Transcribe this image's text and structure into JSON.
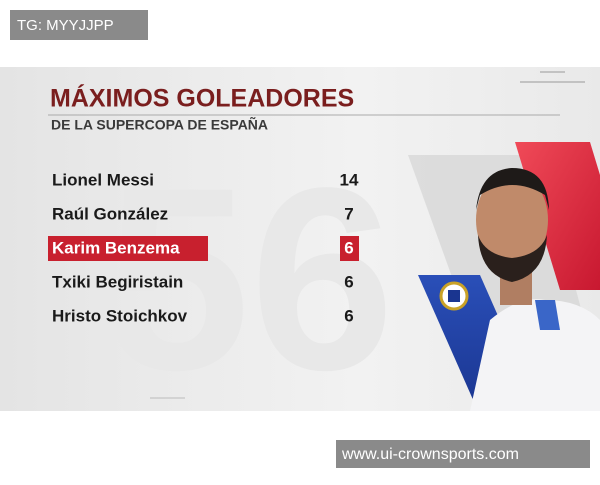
{
  "watermark_top": "TG: MYYJJPP",
  "graphic": {
    "title": "MÁXIMOS GOLEADORES",
    "subtitle": "DE LA SUPERCOPA DE ESPAÑA",
    "highlight_row": 2,
    "rows": [
      [
        "Lionel Messi",
        14
      ],
      [
        "Raúl González",
        7
      ],
      [
        "Karim Benzema",
        6
      ],
      [
        "Txiki Begiristain",
        6
      ],
      [
        "Hristo Stoichkov",
        6
      ]
    ]
  },
  "watermark_bottom": "www.ui-crownsports.com"
}
